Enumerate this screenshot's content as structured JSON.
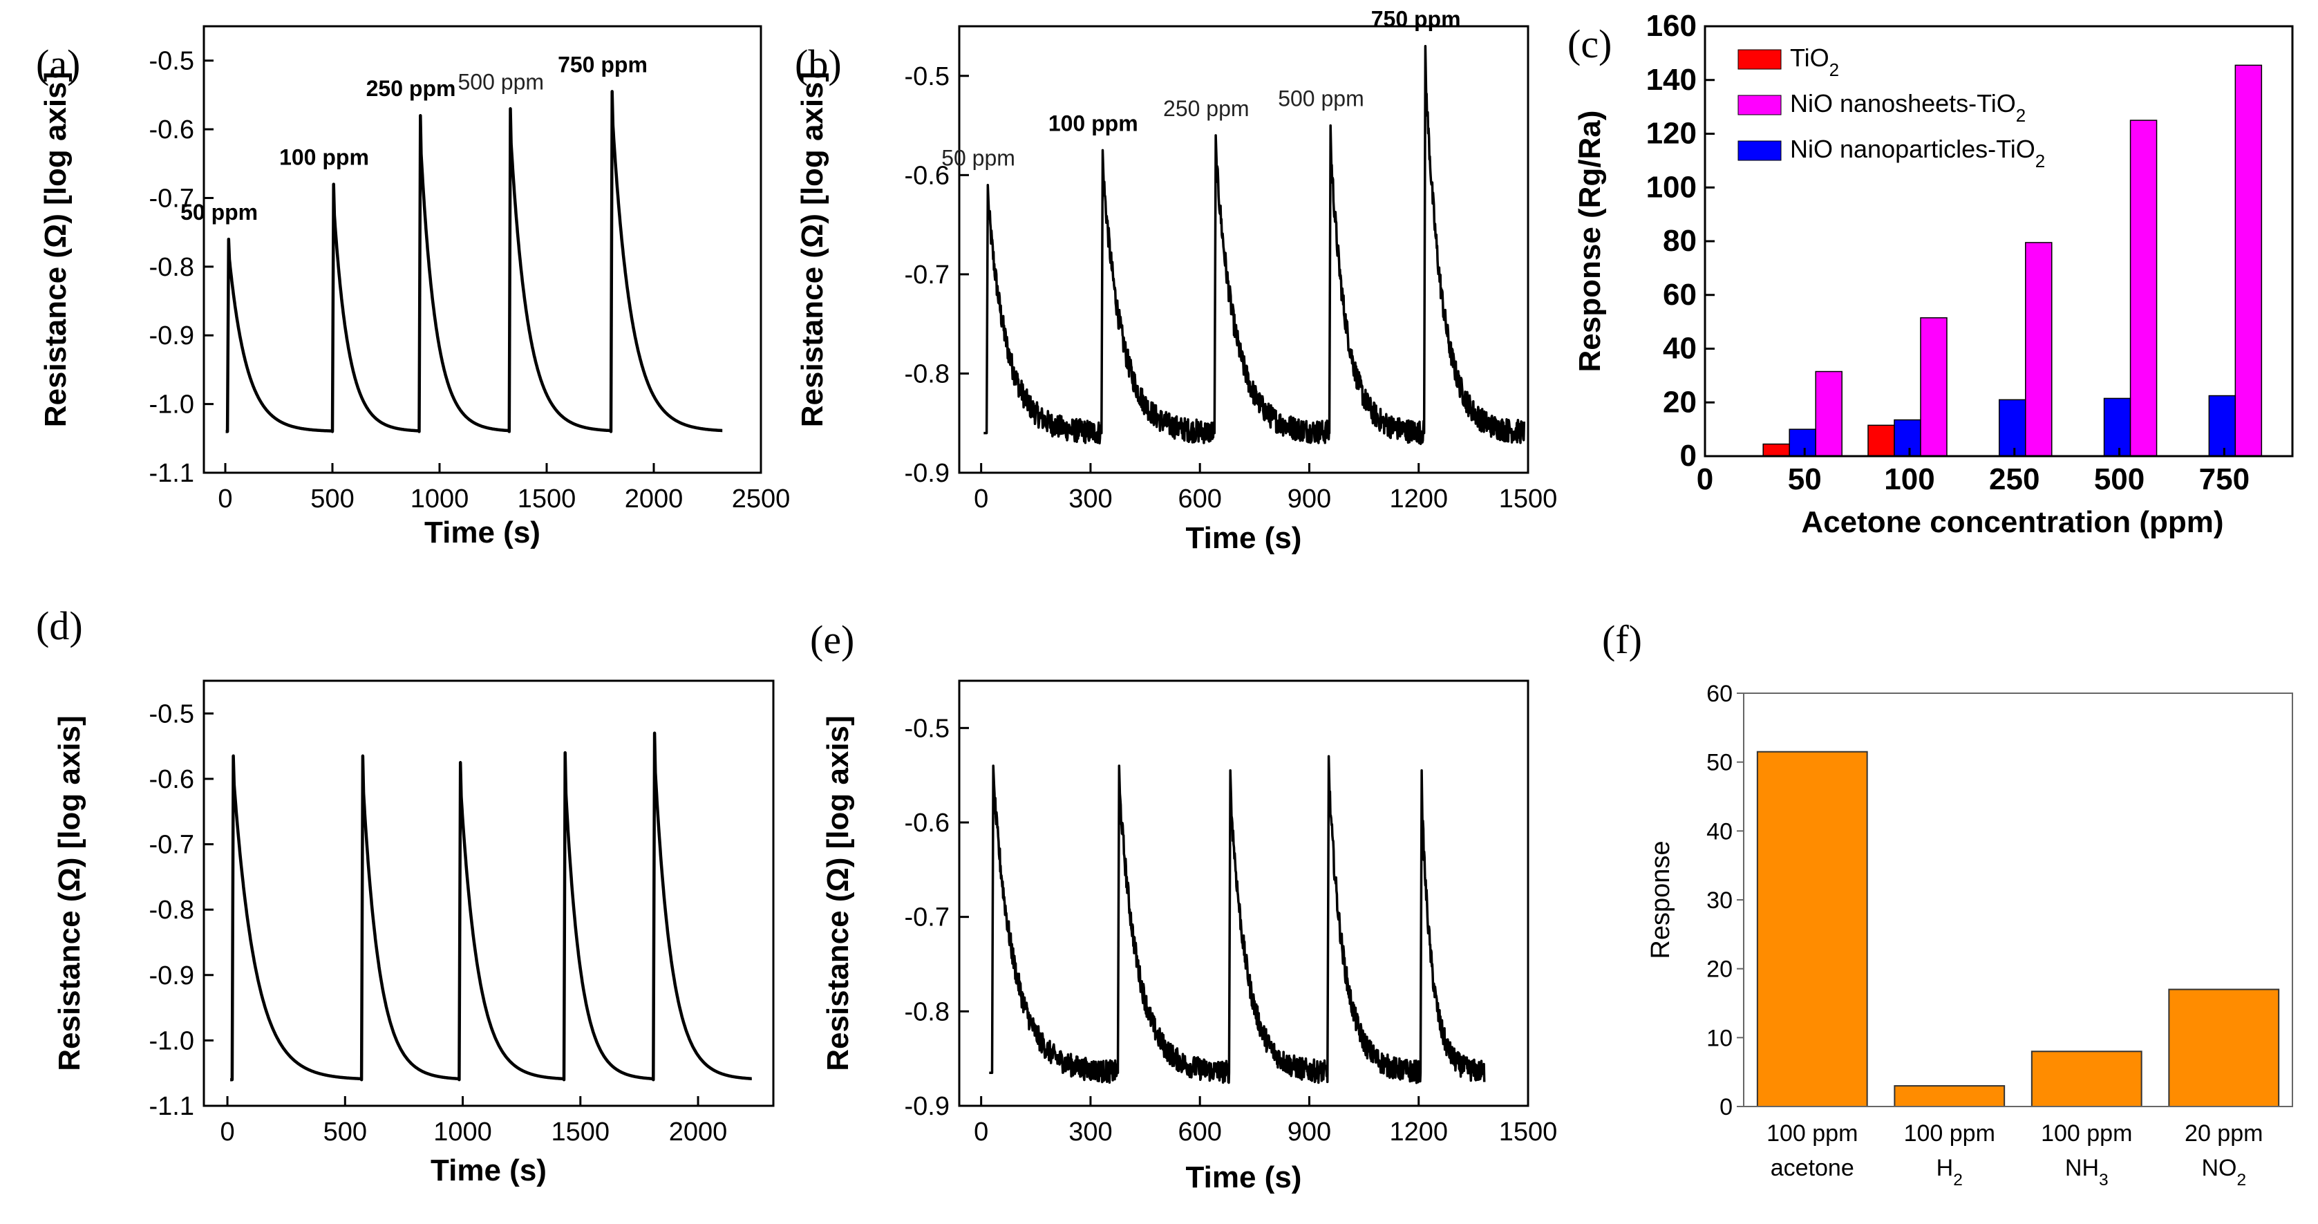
{
  "chart_data": [
    {
      "id": "a",
      "panel_label": "(a)",
      "type": "line",
      "xlabel": "Time (s)",
      "ylabel": "Resistance (Ω) [log axis]",
      "xlim": [
        -100,
        2500
      ],
      "ylim": [
        -1.1,
        -0.45
      ],
      "xticks": [
        0,
        500,
        1000,
        1500,
        2000,
        2500
      ],
      "yticks": [
        -1.1,
        -1.0,
        -0.9,
        -0.8,
        -0.7,
        -0.6,
        -0.5
      ],
      "baseline": -1.04,
      "noise": 0,
      "end_x": 2320,
      "pulses": [
        {
          "t": 10,
          "peak": -0.76,
          "label": "50 ppm",
          "bold": true
        },
        {
          "t": 500,
          "peak": -0.68,
          "label": "100 ppm",
          "bold": true
        },
        {
          "t": 905,
          "peak": -0.58,
          "label": "250 ppm",
          "bold": true
        },
        {
          "t": 1325,
          "peak": -0.57,
          "label": "500 ppm",
          "bold": false
        },
        {
          "t": 1800,
          "peak": -0.545,
          "label": "750 ppm",
          "bold": true
        }
      ]
    },
    {
      "id": "b",
      "panel_label": "(b)",
      "type": "line",
      "xlabel": "Time (s)",
      "ylabel": "Resistance (Ω) [log axis]",
      "xlim": [
        -60,
        1500
      ],
      "ylim": [
        -0.9,
        -0.45
      ],
      "xticks": [
        0,
        300,
        600,
        900,
        1200,
        1500
      ],
      "yticks": [
        -0.9,
        -0.8,
        -0.7,
        -0.6,
        -0.5
      ],
      "baseline": -0.86,
      "noise": 0.012,
      "end_x": 1490,
      "pulses": [
        {
          "t": 15,
          "peak": -0.61,
          "label": "50 ppm",
          "bold": false
        },
        {
          "t": 330,
          "peak": -0.575,
          "label": "100 ppm",
          "bold": true
        },
        {
          "t": 640,
          "peak": -0.56,
          "label": "250 ppm",
          "bold": false
        },
        {
          "t": 955,
          "peak": -0.55,
          "label": "500 ppm",
          "bold": false
        },
        {
          "t": 1215,
          "peak": -0.47,
          "label": "750 ppm",
          "bold": true
        }
      ]
    },
    {
      "id": "c",
      "panel_label": "(c)",
      "type": "bar",
      "xlabel": "Acetone concentration (ppm)",
      "ylabel": "Response (Rg/Ra)",
      "ylim": [
        0,
        160
      ],
      "yticks": [
        0,
        20,
        40,
        60,
        80,
        100,
        120,
        140,
        160
      ],
      "x_zero_label": "0",
      "categories": [
        "50",
        "100",
        "250",
        "500",
        "750"
      ],
      "series": [
        {
          "name": "TiO2",
          "color": "#ff0000",
          "values": [
            4.5,
            11.5,
            null,
            null,
            null
          ]
        },
        {
          "name": "NiO nanosheets-TiO2",
          "color": "#ff00ff",
          "values": [
            31.5,
            51.5,
            79.5,
            125,
            145.5
          ]
        },
        {
          "name": "NiO nanoparticles-TiO2",
          "color": "#0000ff",
          "values": [
            10,
            13.5,
            21,
            21.5,
            22.5
          ]
        }
      ],
      "legend": "top-left"
    },
    {
      "id": "d",
      "panel_label": "(d)",
      "type": "line",
      "xlabel": "Time (s)",
      "ylabel": "Resistance (Ω) [log axis]",
      "xlim": [
        -100,
        2320
      ],
      "ylim": [
        -1.1,
        -0.45
      ],
      "xticks": [
        0,
        500,
        1000,
        1500,
        2000
      ],
      "yticks": [
        -1.1,
        -1.0,
        -0.9,
        -0.8,
        -0.7,
        -0.6,
        -0.5
      ],
      "baseline": -1.06,
      "noise": 0,
      "end_x": 2230,
      "pulses": [
        {
          "t": 20,
          "peak": -0.565
        },
        {
          "t": 570,
          "peak": -0.565
        },
        {
          "t": 985,
          "peak": -0.575
        },
        {
          "t": 1430,
          "peak": -0.56
        },
        {
          "t": 1810,
          "peak": -0.53
        }
      ]
    },
    {
      "id": "e",
      "panel_label": "(e)",
      "type": "line",
      "xlabel": "Time (s)",
      "ylabel": "Resistance (Ω) [log axis]",
      "xlim": [
        -60,
        1500
      ],
      "ylim": [
        -0.9,
        -0.45
      ],
      "xticks": [
        0,
        300,
        600,
        900,
        1200,
        1500
      ],
      "yticks": [
        -0.9,
        -0.8,
        -0.7,
        -0.6,
        -0.5
      ],
      "baseline": -0.865,
      "noise": 0.012,
      "end_x": 1380,
      "pulses": [
        {
          "t": 30,
          "peak": -0.54
        },
        {
          "t": 375,
          "peak": -0.54
        },
        {
          "t": 680,
          "peak": -0.545
        },
        {
          "t": 950,
          "peak": -0.53
        },
        {
          "t": 1205,
          "peak": -0.545
        }
      ]
    },
    {
      "id": "f",
      "panel_label": "(f)",
      "type": "bar",
      "xlabel": "",
      "ylabel": "Response",
      "ylim": [
        0,
        60
      ],
      "yticks": [
        0,
        10,
        20,
        30,
        40,
        50,
        60
      ],
      "color": "#ff8c00",
      "categories": [
        {
          "line1": "100 ppm",
          "line2": "acetone"
        },
        {
          "line1": "100 ppm",
          "line2": "H2"
        },
        {
          "line1": "100 ppm",
          "line2": "NH3"
        },
        {
          "line1": "20 ppm",
          "line2": "NO2"
        }
      ],
      "values": [
        51.5,
        3,
        8,
        17
      ]
    }
  ]
}
